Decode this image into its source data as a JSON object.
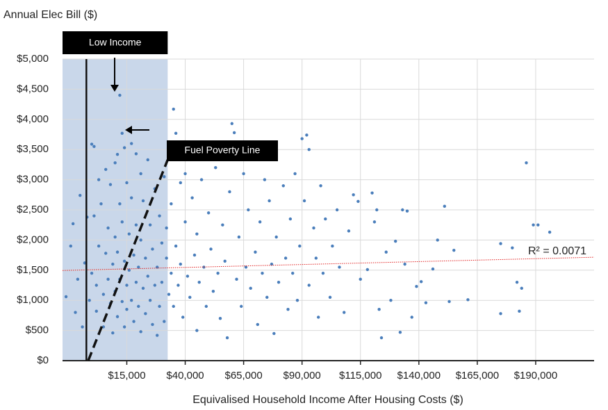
{
  "chart_data": {
    "type": "scatter",
    "y_axis_label": "Annual Elec Bill ($)",
    "x_axis_label": "Equivalised Household Income After Housing Costs ($)",
    "color": "#4a7ebb",
    "grid": true,
    "xlim": [
      -12500,
      215000
    ],
    "ylim": [
      0,
      5000
    ],
    "xticks": [
      {
        "value": 15000,
        "label": "$15,000"
      },
      {
        "value": 40000,
        "label": "$40,000"
      },
      {
        "value": 65000,
        "label": "$65,000"
      },
      {
        "value": 90000,
        "label": "$90,000"
      },
      {
        "value": 115000,
        "label": "$115,000"
      },
      {
        "value": 140000,
        "label": "$140,000"
      },
      {
        "value": 165000,
        "label": "$165,000"
      },
      {
        "value": 190000,
        "label": "$190,000"
      }
    ],
    "yticks": [
      {
        "value": 0,
        "label": "$0"
      },
      {
        "value": 500,
        "label": "$500"
      },
      {
        "value": 1000,
        "label": "$1,000"
      },
      {
        "value": 1500,
        "label": "$1,500"
      },
      {
        "value": 2000,
        "label": "$2,000"
      },
      {
        "value": 2500,
        "label": "$2,500"
      },
      {
        "value": 3000,
        "label": "$3,000"
      },
      {
        "value": 3500,
        "label": "$3,500"
      },
      {
        "value": 4000,
        "label": "$4,000"
      },
      {
        "value": 4500,
        "label": "$4,500"
      },
      {
        "value": 5000,
        "label": "$5,000"
      }
    ],
    "low_income": {
      "label": "Low Income",
      "x_end": 32500,
      "line_x": -2300
    },
    "fuel_poverty_line": {
      "label": "Fuel Poverty Line",
      "x": [
        -1500,
        32500
      ],
      "y": [
        0,
        3330
      ]
    },
    "trendline": {
      "label": "R² = 0.0071",
      "x": [
        -12500,
        215000
      ],
      "y": [
        1495,
        1715
      ]
    },
    "x": [
      -11000,
      -9000,
      -8000,
      -7000,
      -6000,
      -5000,
      -4000,
      -3000,
      -2000,
      -1000,
      0,
      1000,
      0,
      1000,
      2000,
      2000,
      3000,
      3000,
      4000,
      5000,
      5000,
      6000,
      6000,
      7000,
      7000,
      8000,
      8000,
      9000,
      9000,
      10000,
      10000,
      10000,
      11000,
      11000,
      11000,
      12000,
      12000,
      12000,
      13000,
      13000,
      13000,
      14000,
      14000,
      14000,
      15000,
      15000,
      15000,
      16000,
      16000,
      17000,
      17000,
      17000,
      18000,
      18000,
      19000,
      19000,
      19000,
      20000,
      20000,
      21000,
      21000,
      21000,
      22000,
      22000,
      23000,
      23000,
      24000,
      24000,
      25000,
      25000,
      26000,
      26000,
      27000,
      27000,
      28000,
      28000,
      29000,
      29000,
      30000,
      30000,
      31000,
      31000,
      32000,
      32000,
      33000,
      34000,
      34000,
      35000,
      35000,
      36000,
      36000,
      37000,
      38000,
      38000,
      39000,
      40000,
      40000,
      41000,
      42000,
      43000,
      44000,
      45000,
      45000,
      46000,
      47000,
      48000,
      49000,
      50000,
      51000,
      52000,
      53000,
      54000,
      55000,
      56000,
      57000,
      58000,
      59000,
      60000,
      61000,
      62000,
      63000,
      64000,
      65000,
      66000,
      67000,
      68000,
      69000,
      70000,
      71000,
      72000,
      73000,
      74000,
      75000,
      76000,
      77000,
      78000,
      79000,
      80000,
      82000,
      83000,
      84000,
      85000,
      86000,
      87000,
      88000,
      89000,
      90000,
      91000,
      92000,
      93000,
      93000,
      95000,
      96000,
      97000,
      98000,
      99000,
      100000,
      102000,
      103000,
      105000,
      106000,
      108000,
      110000,
      112000,
      114000,
      115000,
      118000,
      120000,
      121000,
      122000,
      123000,
      124000,
      126000,
      128000,
      130000,
      132000,
      133000,
      134000,
      135000,
      137000,
      139000,
      141000,
      143000,
      146000,
      148000,
      151000,
      153000,
      155000,
      161000,
      175000,
      175000,
      180000,
      182000,
      183000,
      184000,
      186000,
      189000,
      191000,
      196000
    ],
    "values": [
      1060,
      1900,
      2270,
      800,
      1350,
      2740,
      560,
      1620,
      2380,
      1000,
      3590,
      3550,
      1450,
      2400,
      1250,
      820,
      3000,
      1900,
      2600,
      1100,
      560,
      1780,
      3170,
      1350,
      2200,
      950,
      2920,
      1600,
      460,
      3280,
      2050,
      1150,
      3420,
      1800,
      730,
      4400,
      2600,
      1350,
      3770,
      2300,
      980,
      3530,
      1650,
      560,
      2950,
      1250,
      850,
      2100,
      1500,
      3600,
      1000,
      2700,
      1750,
      650,
      3430,
      1300,
      2250,
      900,
      1550,
      3100,
      2000,
      480,
      1200,
      2650,
      1700,
      780,
      3330,
      1400,
      2250,
      1000,
      1850,
      600,
      2850,
      1250,
      1550,
      420,
      2400,
      900,
      1950,
      1300,
      3050,
      650,
      1700,
      2200,
      1100,
      2600,
      1450,
      4170,
      900,
      3770,
      1900,
      1250,
      2950,
      1600,
      720,
      3100,
      2300,
      1400,
      1050,
      2700,
      1750,
      500,
      2100,
      1300,
      3000,
      1550,
      900,
      2450,
      1850,
      1150,
      3200,
      1450,
      700,
      2250,
      1650,
      380,
      2800,
      3930,
      3780,
      1350,
      2050,
      900,
      3100,
      1550,
      2500,
      1200,
      3570,
      1800,
      600,
      2300,
      1450,
      3000,
      1050,
      2650,
      1600,
      450,
      2050,
      1300,
      2900,
      1700,
      850,
      2350,
      1450,
      3100,
      1000,
      1900,
      3680,
      2650,
      3740,
      3500,
      1250,
      2200,
      1700,
      720,
      2900,
      1450,
      2350,
      1050,
      1900,
      2500,
      1550,
      800,
      2150,
      2750,
      2640,
      1350,
      1510,
      2780,
      2300,
      2500,
      850,
      380,
      1800,
      1000,
      1980,
      470,
      2500,
      1600,
      2480,
      720,
      1230,
      1310,
      960,
      1520,
      2000,
      2560,
      980,
      1830,
      1010,
      780,
      1940,
      1870,
      1300,
      820,
      1200,
      3280,
      2250,
      2250,
      2130
    ]
  }
}
